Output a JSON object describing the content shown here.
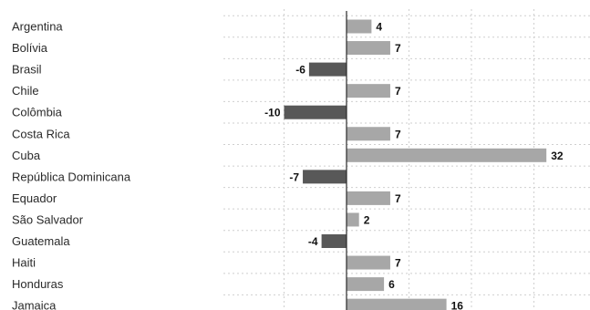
{
  "chart_data": {
    "type": "bar",
    "orientation": "horizontal",
    "categories": [
      "Argentina",
      "Bolívia",
      "Brasil",
      "Chile",
      "Colômbia",
      "Costa Rica",
      "Cuba",
      "República Dominicana",
      "Equador",
      "São Salvador",
      "Guatemala",
      "Haiti",
      "Honduras",
      "Jamaica"
    ],
    "values": [
      4,
      7,
      -6,
      7,
      -10,
      7,
      32,
      -7,
      7,
      2,
      -4,
      7,
      6,
      16
    ],
    "value_labels": [
      "4",
      "7",
      "-6",
      "7",
      "-10",
      "7",
      "32",
      "-7",
      "7",
      "2",
      "-4",
      "7",
      "6",
      "16"
    ],
    "xlim": [
      -20,
      40
    ],
    "grid": true,
    "colors": {
      "positive": "#a7a7a7",
      "negative": "#585858",
      "grid": "#cfcfcf",
      "axis": "#2a2a2a"
    }
  }
}
